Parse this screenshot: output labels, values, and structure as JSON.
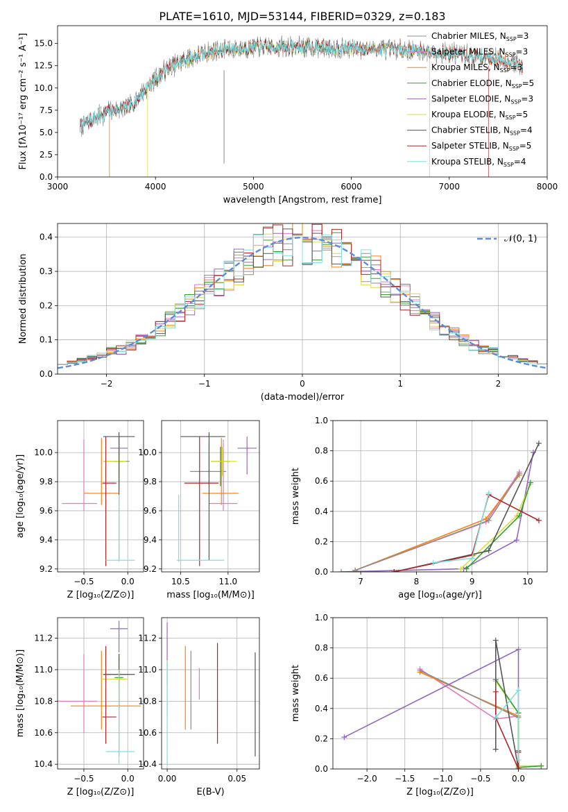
{
  "title": "PLATE=1610, MJD=53144, FIBERID=0329, z=0.183",
  "colors": {
    "chabrier_miles": "#8c8c8c",
    "salpeter_miles": "#e377c2",
    "kroupa_miles": "#ff7f0e",
    "chabrier_elodie": "#2ca02c",
    "salpeter_elodie": "#9467bd",
    "kroupa_elodie": "#dbdb3d",
    "chabrier_stelib": "#555555",
    "salpeter_stelib": "#b22222",
    "kroupa_stelib": "#7fdfdf",
    "normal": "#5b8bd9"
  },
  "chart_data": [
    {
      "id": "spectrum",
      "type": "line",
      "xlabel": "wavelength [Angstrom, rest frame]",
      "ylabel": "Flux [fλ10⁻¹⁷ erg cm⁻² s⁻¹ A⁻¹]",
      "xlim": [
        3000,
        8000
      ],
      "ylim": [
        0,
        17
      ],
      "xticks": [
        "3000",
        "4000",
        "5000",
        "6000",
        "7000",
        "8000"
      ],
      "yticks": [
        "0.0",
        "2.5",
        "5.0",
        "7.5",
        "10.0",
        "12.5",
        "15.0"
      ],
      "legend": [
        "Chabrier MILES, N_SSP=3",
        "Salpeter MILES, N_SSP=3",
        "Kroupa MILES, N_SSP=3",
        "Chabrier ELODIE, N_SSP=5",
        "Salpeter ELODIE, N_SSP=3",
        "Kroupa ELODIE, N_SSP=5",
        "Chabrier STELIB, N_SSP=4",
        "Salpeter STELIB, N_SSP=5",
        "Kroupa STELIB, N_SSP=4"
      ],
      "legend_placement": "right",
      "data_range": [
        3230,
        7750
      ],
      "continuum": [
        [
          3230,
          5.7
        ],
        [
          3500,
          7.3
        ],
        [
          3750,
          8.0
        ],
        [
          3950,
          10.5
        ],
        [
          4100,
          12.0
        ],
        [
          4300,
          13.2
        ],
        [
          4600,
          14.2
        ],
        [
          5000,
          14.6
        ],
        [
          5500,
          14.6
        ],
        [
          6000,
          14.5
        ],
        [
          6500,
          14.3
        ],
        [
          7000,
          13.9
        ],
        [
          7500,
          13.3
        ],
        [
          7750,
          12.5
        ]
      ],
      "grid": false
    },
    {
      "id": "hist",
      "type": "step",
      "xlabel": "(data-model)/error",
      "ylabel": "Normed distribution",
      "xlim": [
        -2.5,
        2.5
      ],
      "ylim": [
        0,
        0.44
      ],
      "xticks": [
        "−2",
        "−1",
        "0",
        "1",
        "2"
      ],
      "yticks": [
        "0.0",
        "0.1",
        "0.2",
        "0.3",
        "0.4"
      ],
      "legend_label": "𝒩(0, 1)",
      "legend_placement": "top-right",
      "grid": true
    },
    {
      "id": "z_age",
      "type": "errorbar",
      "xlabel": "Z [log₁₀(Z/Z⊙)]",
      "ylabel": "age  [log₁₀(age/yr)]",
      "xlim": [
        -0.8,
        0.18
      ],
      "ylim": [
        9.18,
        10.22
      ],
      "xticks": [
        "−0.5",
        "0.0"
      ],
      "yticks": [
        "9.2",
        "9.4",
        "9.6",
        "9.8",
        "10.0"
      ],
      "points": [
        {
          "c": "chabrier_miles",
          "x": -0.1,
          "xe": [
            0.18,
            0.12
          ],
          "y": 9.94,
          "ye": [
            0.2,
            0.15
          ]
        },
        {
          "c": "salpeter_miles",
          "x": -0.5,
          "xe": [
            0.25,
            0.15
          ],
          "y": 9.65,
          "ye": [
            0.05,
            0.44
          ]
        },
        {
          "c": "kroupa_miles",
          "x": -0.3,
          "xe": [
            0.2,
            0.2
          ],
          "y": 9.72,
          "ye": [
            0.08,
            0.38
          ]
        },
        {
          "c": "chabrier_elodie",
          "x": -0.1,
          "xe": [
            0.05,
            0.05
          ],
          "y": 9.94,
          "ye": [
            0.17,
            0.1
          ]
        },
        {
          "c": "salpeter_elodie",
          "x": -0.1,
          "xe": [
            0.1,
            0.1
          ],
          "y": 10.03,
          "ye": [
            0.18,
            0.08
          ]
        },
        {
          "c": "kroupa_elodie",
          "x": -0.1,
          "xe": [
            0.18,
            0.08
          ],
          "y": 9.94,
          "ye": [
            0.1,
            0.1
          ]
        },
        {
          "c": "chabrier_stelib",
          "x": -0.1,
          "xe": [
            0.18,
            0.18
          ],
          "y": 10.11,
          "ye": [
            0.85,
            0.03
          ]
        },
        {
          "c": "salpeter_stelib",
          "x": -0.25,
          "xe": [
            0.04,
            0.12
          ],
          "y": 9.79,
          "ye": [
            0.57,
            0.32
          ]
        },
        {
          "c": "kroupa_stelib",
          "x": -0.1,
          "xe": [
            0.15,
            0.18
          ],
          "y": 9.26,
          "ye": [
            0.01,
            0.45
          ]
        }
      ],
      "grid": true
    },
    {
      "id": "mass_age",
      "type": "errorbar",
      "xlabel": "mass [log₁₀(M/M⊙)]",
      "ylabel": "",
      "xlim": [
        10.3,
        11.33
      ],
      "ylim": [
        9.18,
        10.22
      ],
      "xticks": [
        "10.5",
        "11.0"
      ],
      "yticks": [
        "9.2",
        "9.4",
        "9.6",
        "9.8",
        "10.0"
      ],
      "points": [
        {
          "c": "chabrier_miles",
          "x": 10.8,
          "xe": [
            0.2,
            0.18
          ],
          "y": 9.87,
          "ye": [
            0.1,
            0.2
          ]
        },
        {
          "c": "salpeter_miles",
          "x": 10.95,
          "xe": [
            0.15,
            0.15
          ],
          "y": 9.65,
          "ye": [
            0.05,
            0.44
          ]
        },
        {
          "c": "kroupa_miles",
          "x": 10.93,
          "xe": [
            0.2,
            0.18
          ],
          "y": 9.72,
          "ye": [
            0.08,
            0.38
          ]
        },
        {
          "c": "chabrier_elodie",
          "x": 10.92,
          "xe": [
            0.1,
            0.1
          ],
          "y": 9.94,
          "ye": [
            0.17,
            0.1
          ]
        },
        {
          "c": "salpeter_elodie",
          "x": 11.2,
          "xe": [
            0.1,
            0.1
          ],
          "y": 10.03,
          "ye": [
            0.18,
            0.08
          ]
        },
        {
          "c": "kroupa_elodie",
          "x": 10.94,
          "xe": [
            0.12,
            0.15
          ],
          "y": 9.94,
          "ye": [
            0.1,
            0.1
          ]
        },
        {
          "c": "chabrier_stelib",
          "x": 10.8,
          "xe": [
            0.3,
            0.17
          ],
          "y": 10.11,
          "ye": [
            0.85,
            0.03
          ]
        },
        {
          "c": "salpeter_stelib",
          "x": 10.7,
          "xe": [
            0.16,
            0.2
          ],
          "y": 9.79,
          "ye": [
            0.57,
            0.32
          ]
        },
        {
          "c": "kroupa_stelib",
          "x": 10.48,
          "xe": [
            0.02,
            0.48
          ],
          "y": 9.26,
          "ye": [
            0.01,
            0.45
          ]
        }
      ],
      "grid": true
    },
    {
      "id": "age_mw",
      "type": "line",
      "xlabel": "age  [log₁₀(age/yr)]",
      "ylabel": "mass weight",
      "xlim": [
        6.5,
        10.35
      ],
      "ylim": [
        0,
        1.0
      ],
      "xticks": [
        "7",
        "8",
        "9",
        "10"
      ],
      "yticks": [
        "0.0",
        "0.2",
        "0.4",
        "0.6",
        "0.8",
        "1.0"
      ],
      "series": [
        {
          "c": "salpeter_miles",
          "x": [
            6.9,
            9.25,
            9.85
          ],
          "y": [
            0.01,
            0.33,
            0.66
          ]
        },
        {
          "c": "kroupa_miles",
          "x": [
            6.9,
            9.25,
            9.85
          ],
          "y": [
            0.01,
            0.35,
            0.64
          ]
        },
        {
          "c": "chabrier_miles",
          "x": [
            6.9,
            9.3,
            9.85
          ],
          "y": [
            0.01,
            0.34,
            0.65
          ]
        },
        {
          "c": "salpeter_elodie",
          "x": [
            6.65,
            8.85,
            9.8,
            10.1
          ],
          "y": [
            0.0,
            0.02,
            0.21,
            0.79
          ]
        },
        {
          "c": "kroupa_elodie",
          "x": [
            8.8,
            9.8,
            10.05
          ],
          "y": [
            0.02,
            0.37,
            0.58
          ]
        },
        {
          "c": "chabrier_elodie",
          "x": [
            8.9,
            9.85,
            10.05
          ],
          "y": [
            0.02,
            0.37,
            0.59
          ]
        },
        {
          "c": "chabrier_stelib",
          "x": [
            7.6,
            9.3,
            10.2
          ],
          "y": [
            0.0,
            0.14,
            0.85
          ]
        },
        {
          "c": "salpeter_stelib",
          "x": [
            7.6,
            9.0,
            9.3,
            10.2
          ],
          "y": [
            0.0,
            0.11,
            0.51,
            0.34
          ]
        },
        {
          "c": "kroupa_stelib",
          "x": [
            8.3,
            9.0,
            9.3
          ],
          "y": [
            0.06,
            0.09,
            0.52
          ]
        }
      ],
      "grid": true
    },
    {
      "id": "z_mass",
      "type": "errorbar",
      "xlabel": "Z [log₁₀(Z/Z⊙)]",
      "ylabel": "mass [log₁₀(M/M⊙)]",
      "xlim": [
        -0.8,
        0.18
      ],
      "ylim": [
        10.37,
        11.33
      ],
      "xticks": [
        "−0.5",
        "0.0"
      ],
      "yticks": [
        "10.4",
        "10.6",
        "10.8",
        "11.0",
        "11.2"
      ],
      "points": [
        {
          "c": "chabrier_miles",
          "x": -0.1,
          "xe": [
            0.18,
            0.12
          ],
          "y": 10.97,
          "ye": [
            0.1,
            0.1
          ]
        },
        {
          "c": "salpeter_miles",
          "x": -0.5,
          "xe": [
            0.3,
            0.15
          ],
          "y": 10.8,
          "ye": [
            0.2,
            0.3
          ]
        },
        {
          "c": "kroupa_miles",
          "x": -0.3,
          "xe": [
            0.35,
            0.45
          ],
          "y": 10.77,
          "ye": [
            0.15,
            0.35
          ]
        },
        {
          "c": "chabrier_elodie",
          "x": -0.1,
          "xe": [
            0.05,
            0.05
          ],
          "y": 10.95,
          "ye": [
            0.2,
            0.15
          ]
        },
        {
          "c": "salpeter_elodie",
          "x": -0.1,
          "xe": [
            0.1,
            0.1
          ],
          "y": 11.26,
          "ye": [
            0.15,
            0.05
          ]
        },
        {
          "c": "kroupa_elodie",
          "x": -0.1,
          "xe": [
            0.2,
            0.1
          ],
          "y": 10.94,
          "ye": [
            0.1,
            0.1
          ]
        },
        {
          "c": "chabrier_stelib",
          "x": -0.1,
          "xe": [
            0.18,
            0.18
          ],
          "y": 10.97,
          "ye": [
            0.52,
            0.13
          ]
        },
        {
          "c": "salpeter_stelib",
          "x": -0.25,
          "xe": [
            0.04,
            0.12
          ],
          "y": 10.7,
          "ye": [
            0.17,
            0.45
          ]
        },
        {
          "c": "kroupa_stelib",
          "x": -0.1,
          "xe": [
            0.15,
            0.18
          ],
          "y": 10.48,
          "ye": [
            0.08,
            0.52
          ]
        }
      ],
      "grid": true
    },
    {
      "id": "ebv_mass",
      "type": "errorbar",
      "xlabel": "E(B-V)",
      "ylabel": "",
      "xlim": [
        -0.004,
        0.066
      ],
      "ylim": [
        10.37,
        11.33
      ],
      "xticks": [
        "0.00",
        "0.05"
      ],
      "yticks": [
        "10.4",
        "10.6",
        "10.8",
        "11.0",
        "11.2"
      ],
      "points": [
        {
          "c": "salpeter_elodie",
          "x": 0.0,
          "y": 11.1,
          "ye": [
            0.2,
            0.2
          ]
        },
        {
          "c": "kroupa_elodie",
          "x": 0.0,
          "y": 10.88,
          "ye": [
            0.17,
            0.18
          ]
        },
        {
          "c": "kroupa_stelib",
          "x": 0.0,
          "y": 10.7,
          "ye": [
            0.3,
            0.35
          ]
        },
        {
          "c": "kroupa_miles",
          "x": 0.013,
          "y": 10.88,
          "ye": [
            0.26,
            0.27
          ]
        },
        {
          "c": "chabrier_miles",
          "x": 0.017,
          "y": 10.87,
          "ye": [
            0.25,
            0.25
          ]
        },
        {
          "c": "salpeter_miles",
          "x": 0.023,
          "y": 10.91,
          "ye": [
            0.1,
            0.1
          ]
        },
        {
          "c": "salpeter_stelib",
          "x": 0.036,
          "y": 10.85,
          "ye": [
            0.32,
            0.32
          ]
        },
        {
          "c": "chabrier_stelib",
          "x": 0.063,
          "y": 10.78,
          "ye": [
            0.33,
            0.33
          ]
        }
      ],
      "grid": true
    },
    {
      "id": "z_mw",
      "type": "line",
      "xlabel": "Z [log₁₀(Z/Z⊙)]",
      "ylabel": "mass weight",
      "xlim": [
        -2.45,
        0.38
      ],
      "ylim": [
        0,
        1.0
      ],
      "xticks": [
        "−2.0",
        "−1.5",
        "−1.0",
        "−0.5",
        "0.0"
      ],
      "yticks": [
        "0.0",
        "0.2",
        "0.4",
        "0.6",
        "0.8",
        "1.0"
      ],
      "series": [
        {
          "c": "salpeter_miles",
          "x": [
            -1.3,
            -0.3,
            0.0
          ],
          "y": [
            0.66,
            0.33,
            0.35
          ]
        },
        {
          "c": "kroupa_miles",
          "x": [
            -1.3,
            0.0
          ],
          "y": [
            0.64,
            0.35
          ]
        },
        {
          "c": "chabrier_miles",
          "x": [
            -1.3,
            0.0
          ],
          "y": [
            0.65,
            0.34
          ]
        },
        {
          "c": "salpeter_elodie",
          "x": [
            -2.3,
            0.0,
            0.0
          ],
          "y": [
            0.21,
            0.79,
            0.0
          ]
        },
        {
          "c": "kroupa_elodie",
          "x": [
            -0.3,
            0.0,
            0.0,
            0.3
          ],
          "y": [
            0.58,
            0.37,
            0.02,
            0.02
          ]
        },
        {
          "c": "chabrier_elodie",
          "x": [
            -0.3,
            0.0,
            0.0,
            0.3
          ],
          "y": [
            0.59,
            0.37,
            0.01,
            0.02
          ]
        },
        {
          "c": "chabrier_stelib",
          "x": [
            -0.3,
            -0.3,
            0.0,
            0.0
          ],
          "y": [
            0.13,
            0.85,
            0.0,
            0.12
          ]
        },
        {
          "c": "salpeter_stelib",
          "x": [
            -0.3,
            -0.3,
            0.0,
            0.0
          ],
          "y": [
            0.51,
            0.34,
            0.0,
            0.11
          ]
        },
        {
          "c": "kroupa_stelib",
          "x": [
            -0.3,
            0.0,
            0.0
          ],
          "y": [
            0.34,
            0.52,
            0.06
          ]
        }
      ],
      "grid": true
    }
  ]
}
